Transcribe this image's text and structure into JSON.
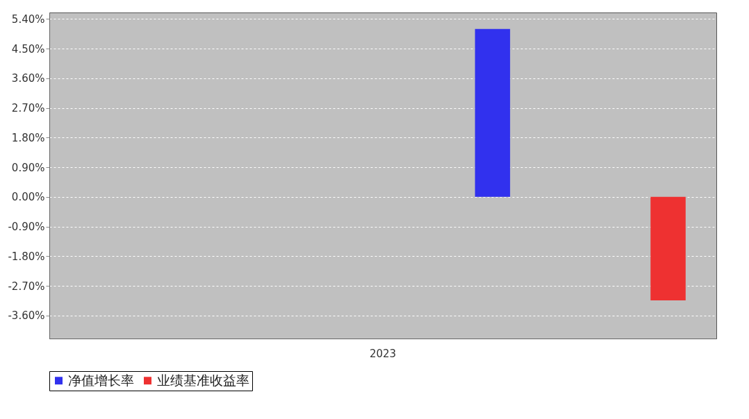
{
  "chart_data": {
    "type": "bar",
    "categories": [
      "2023"
    ],
    "series": [
      {
        "name": "净值增长率",
        "color": "#3131ee",
        "values": [
          5.1
        ]
      },
      {
        "name": "业绩基准收益率",
        "color": "#ee3131",
        "values": [
          -3.14
        ]
      }
    ],
    "ylim": [
      -4.3,
      5.6
    ],
    "yticks": [
      {
        "value": 5.4,
        "label": "5.40%"
      },
      {
        "value": 4.5,
        "label": "4.50%"
      },
      {
        "value": 3.6,
        "label": "3.60%"
      },
      {
        "value": 2.7,
        "label": "2.70%"
      },
      {
        "value": 1.8,
        "label": "1.80%"
      },
      {
        "value": 0.9,
        "label": "0.90%"
      },
      {
        "value": 0,
        "label": "0.00%"
      },
      {
        "value": -0.9,
        "label": "-0.90%"
      },
      {
        "value": -1.8,
        "label": "-1.80%"
      },
      {
        "value": -2.7,
        "label": "-2.70%"
      },
      {
        "value": -3.6,
        "label": "-3.60%"
      }
    ],
    "grid": "y",
    "legend": "bottom"
  }
}
